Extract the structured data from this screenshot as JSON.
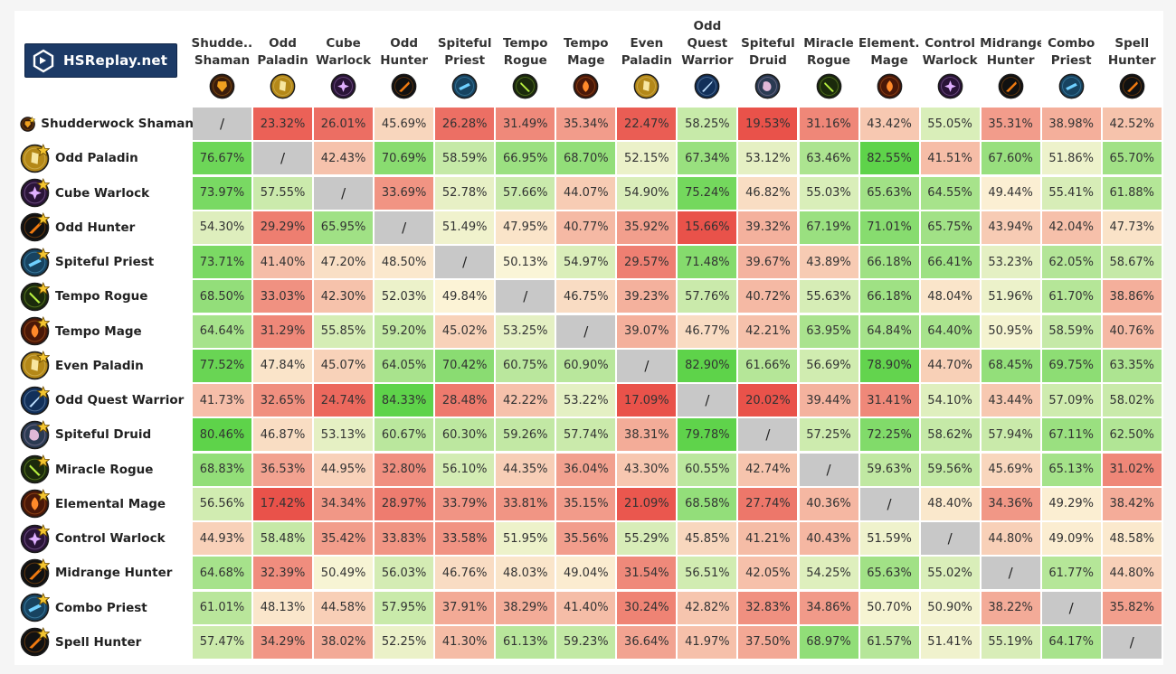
{
  "brand": {
    "name": "HSReplay.net"
  },
  "colors": {
    "low": "#e9524a",
    "mid": "#fcf5d8",
    "high": "#5ed34a",
    "mirror": "#c8c8c8"
  },
  "mirror_symbol": "/",
  "columns": [
    {
      "line1": "Shudde...",
      "line2": "Shaman",
      "cls": "shaman"
    },
    {
      "line1": "Odd",
      "line2": "Paladin",
      "cls": "paladin"
    },
    {
      "line1": "Cube",
      "line2": "Warlock",
      "cls": "warlock"
    },
    {
      "line1": "Odd",
      "line2": "Hunter",
      "cls": "hunter"
    },
    {
      "line1": "Spiteful",
      "line2": "Priest",
      "cls": "priest"
    },
    {
      "line1": "Tempo",
      "line2": "Rogue",
      "cls": "rogue"
    },
    {
      "line1": "Tempo",
      "line2": "Mage",
      "cls": "mage"
    },
    {
      "line1": "Even",
      "line2": "Paladin",
      "cls": "paladin"
    },
    {
      "line1": "Odd",
      "line2": "Quest",
      "line3": "Warrior",
      "cls": "warrior"
    },
    {
      "line1": "Spiteful",
      "line2": "Druid",
      "cls": "druid"
    },
    {
      "line1": "Miracle",
      "line2": "Rogue",
      "cls": "rogue"
    },
    {
      "line1": "Element...",
      "line2": "Mage",
      "cls": "mage"
    },
    {
      "line1": "Control",
      "line2": "Warlock",
      "cls": "warlock"
    },
    {
      "line1": "Midrange",
      "line2": "Hunter",
      "cls": "hunter"
    },
    {
      "line1": "Combo",
      "line2": "Priest",
      "cls": "priest"
    },
    {
      "line1": "Spell",
      "line2": "Hunter",
      "cls": "hunter"
    }
  ],
  "rows": [
    {
      "name": "Shudderwock Shaman",
      "cls": "shaman"
    },
    {
      "name": "Odd Paladin",
      "cls": "paladin"
    },
    {
      "name": "Cube Warlock",
      "cls": "warlock"
    },
    {
      "name": "Odd Hunter",
      "cls": "hunter"
    },
    {
      "name": "Spiteful Priest",
      "cls": "priest"
    },
    {
      "name": "Tempo Rogue",
      "cls": "rogue"
    },
    {
      "name": "Tempo Mage",
      "cls": "mage"
    },
    {
      "name": "Even Paladin",
      "cls": "paladin"
    },
    {
      "name": "Odd Quest Warrior",
      "cls": "warrior"
    },
    {
      "name": "Spiteful Druid",
      "cls": "druid"
    },
    {
      "name": "Miracle Rogue",
      "cls": "rogue"
    },
    {
      "name": "Elemental Mage",
      "cls": "mage"
    },
    {
      "name": "Control Warlock",
      "cls": "warlock"
    },
    {
      "name": "Midrange Hunter",
      "cls": "hunter"
    },
    {
      "name": "Combo Priest",
      "cls": "priest"
    },
    {
      "name": "Spell Hunter",
      "cls": "hunter"
    }
  ],
  "chart_data": {
    "type": "heatmap",
    "title": "",
    "unit": "%",
    "x_categories": [
      "Shudderwock Shaman",
      "Odd Paladin",
      "Cube Warlock",
      "Odd Hunter",
      "Spiteful Priest",
      "Tempo Rogue",
      "Tempo Mage",
      "Even Paladin",
      "Odd Quest Warrior",
      "Spiteful Druid",
      "Miracle Rogue",
      "Elemental Mage",
      "Control Warlock",
      "Midrange Hunter",
      "Combo Priest",
      "Spell Hunter"
    ],
    "y_categories": [
      "Shudderwock Shaman",
      "Odd Paladin",
      "Cube Warlock",
      "Odd Hunter",
      "Spiteful Priest",
      "Tempo Rogue",
      "Tempo Mage",
      "Even Paladin",
      "Odd Quest Warrior",
      "Spiteful Druid",
      "Miracle Rogue",
      "Elemental Mage",
      "Control Warlock",
      "Midrange Hunter",
      "Combo Priest",
      "Spell Hunter"
    ],
    "values": [
      [
        null,
        23.32,
        26.01,
        45.69,
        26.28,
        31.49,
        35.34,
        22.47,
        58.25,
        19.53,
        31.16,
        43.42,
        55.05,
        35.31,
        38.98,
        42.52
      ],
      [
        76.67,
        null,
        42.43,
        70.69,
        58.59,
        66.95,
        68.7,
        52.15,
        67.34,
        53.12,
        63.46,
        82.55,
        41.51,
        67.6,
        51.86,
        65.7
      ],
      [
        73.97,
        57.55,
        null,
        33.69,
        52.78,
        57.66,
        44.07,
        54.9,
        75.24,
        46.82,
        55.03,
        65.63,
        64.55,
        49.44,
        55.41,
        61.88
      ],
      [
        54.3,
        29.29,
        65.95,
        null,
        51.49,
        47.95,
        40.77,
        35.92,
        15.66,
        39.32,
        67.19,
        71.01,
        65.75,
        43.94,
        42.04,
        47.73
      ],
      [
        73.71,
        41.4,
        47.2,
        48.5,
        null,
        50.13,
        54.97,
        29.57,
        71.48,
        39.67,
        43.89,
        66.18,
        66.41,
        53.23,
        62.05,
        58.67
      ],
      [
        68.5,
        33.03,
        42.3,
        52.03,
        49.84,
        null,
        46.75,
        39.23,
        57.76,
        40.72,
        55.63,
        66.18,
        48.04,
        51.96,
        61.7,
        38.86
      ],
      [
        64.64,
        31.29,
        55.85,
        59.2,
        45.02,
        53.25,
        null,
        39.07,
        46.77,
        42.21,
        63.95,
        64.84,
        64.4,
        50.95,
        58.59,
        40.76
      ],
      [
        77.52,
        47.84,
        45.07,
        64.05,
        70.42,
        60.75,
        60.9,
        null,
        82.9,
        61.66,
        56.69,
        78.9,
        44.7,
        68.45,
        69.75,
        63.35
      ],
      [
        41.73,
        32.65,
        24.74,
        84.33,
        28.48,
        42.22,
        53.22,
        17.09,
        null,
        20.02,
        39.44,
        31.41,
        54.1,
        43.44,
        57.09,
        58.02
      ],
      [
        80.46,
        46.87,
        53.13,
        60.67,
        60.3,
        59.26,
        57.74,
        38.31,
        79.78,
        null,
        57.25,
        72.25,
        58.62,
        57.94,
        67.11,
        62.5
      ],
      [
        68.83,
        36.53,
        44.95,
        32.8,
        56.1,
        44.35,
        36.04,
        43.3,
        60.55,
        42.74,
        null,
        59.63,
        59.56,
        45.69,
        65.13,
        31.02
      ],
      [
        56.56,
        17.42,
        34.34,
        28.97,
        33.79,
        33.81,
        35.15,
        21.09,
        68.58,
        27.74,
        40.36,
        null,
        48.4,
        34.36,
        49.29,
        38.42
      ],
      [
        44.93,
        58.48,
        35.42,
        33.83,
        33.58,
        51.95,
        35.56,
        55.29,
        45.85,
        41.21,
        40.43,
        51.59,
        null,
        44.8,
        49.09,
        48.58
      ],
      [
        64.68,
        32.39,
        50.49,
        56.03,
        46.76,
        48.03,
        49.04,
        31.54,
        56.51,
        42.05,
        54.25,
        65.63,
        55.02,
        null,
        61.77,
        44.8
      ],
      [
        61.01,
        48.13,
        44.58,
        57.95,
        37.91,
        38.29,
        41.4,
        30.24,
        42.82,
        32.83,
        34.86,
        50.7,
        50.9,
        38.22,
        null,
        35.82
      ],
      [
        57.47,
        34.29,
        38.02,
        52.25,
        41.3,
        61.13,
        59.23,
        36.64,
        41.97,
        37.5,
        68.97,
        61.57,
        51.41,
        55.19,
        64.17,
        null
      ]
    ]
  }
}
